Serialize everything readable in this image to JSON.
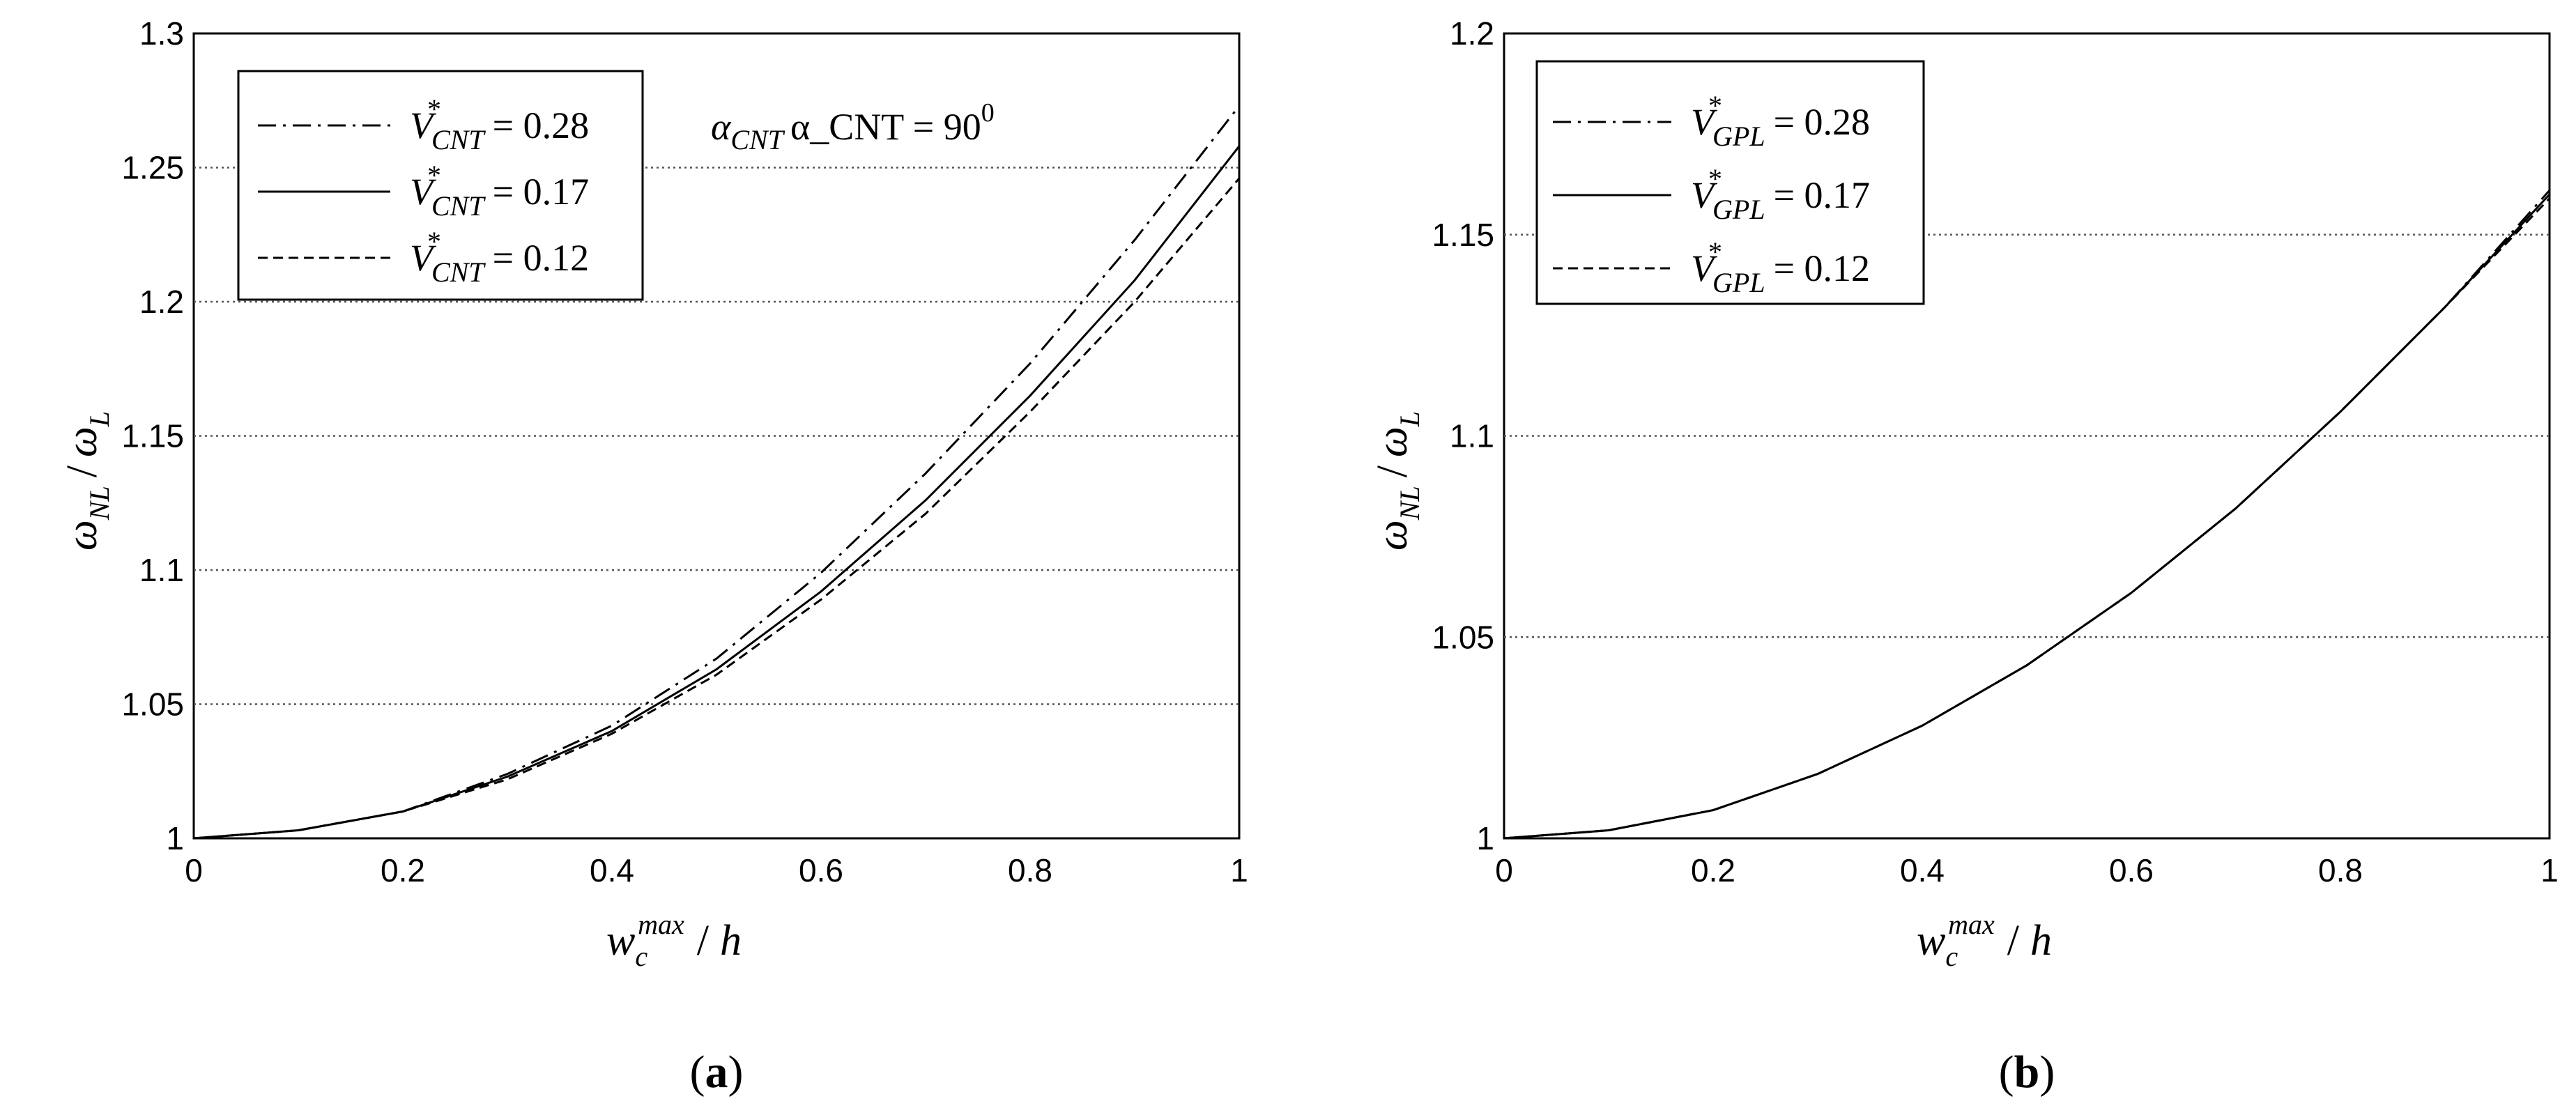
{
  "chart_data": [
    {
      "type": "line",
      "panel_label": "a",
      "xlabel": "w_c^max / h",
      "ylabel": "ω_NL / ω_L",
      "xlim": [
        0,
        1
      ],
      "ylim": [
        1,
        1.3
      ],
      "x_ticks": [
        "0",
        "0.2",
        "0.4",
        "0.6",
        "0.8",
        "1"
      ],
      "y_ticks": [
        "1",
        "1.05",
        "1.1",
        "1.15",
        "1.2",
        "1.25",
        "1.3"
      ],
      "grid": "horizontal-dotted",
      "legend_placement": "top-left",
      "annotation": {
        "label": "α_CNT = 90",
        "superscript": "0"
      },
      "x": [
        0,
        0.1,
        0.2,
        0.3,
        0.4,
        0.5,
        0.6,
        0.7,
        0.8,
        0.9,
        1.0
      ],
      "series": [
        {
          "name": "V*_CNT = 0.28",
          "legend_prefix": "V",
          "legend_subscript": "CNT",
          "legend_value": "= 0.28",
          "style": "dashdot",
          "values": [
            1.0,
            1.003,
            1.01,
            1.024,
            1.042,
            1.067,
            1.099,
            1.136,
            1.177,
            1.223,
            1.273
          ]
        },
        {
          "name": "V*_CNT = 0.17",
          "legend_prefix": "V",
          "legend_subscript": "CNT",
          "legend_value": "= 0.17",
          "style": "solid",
          "values": [
            1.0,
            1.003,
            1.01,
            1.023,
            1.04,
            1.063,
            1.092,
            1.126,
            1.165,
            1.208,
            1.258
          ]
        },
        {
          "name": "V*_CNT = 0.12",
          "legend_prefix": "V",
          "legend_subscript": "CNT",
          "legend_value": "= 0.12",
          "style": "dashed",
          "values": [
            1.0,
            1.003,
            1.01,
            1.022,
            1.039,
            1.061,
            1.089,
            1.121,
            1.159,
            1.2,
            1.246
          ]
        }
      ]
    },
    {
      "type": "line",
      "panel_label": "b",
      "xlabel": "w_c^max / h",
      "ylabel": "ω_NL / ω_L",
      "xlim": [
        0,
        1
      ],
      "ylim": [
        1,
        1.2
      ],
      "x_ticks": [
        "0",
        "0.2",
        "0.4",
        "0.6",
        "0.8",
        "1"
      ],
      "y_ticks": [
        "1",
        "1.05",
        "1.1",
        "1.15",
        "1.2"
      ],
      "grid": "horizontal-dotted",
      "legend_placement": "top-left",
      "x": [
        0,
        0.1,
        0.2,
        0.3,
        0.4,
        0.5,
        0.6,
        0.7,
        0.8,
        0.9,
        1.0
      ],
      "series": [
        {
          "name": "V*_GPL = 0.28",
          "legend_prefix": "V",
          "legend_subscript": "GPL",
          "legend_value": "= 0.28",
          "style": "dashdot",
          "values": [
            1.0,
            1.002,
            1.007,
            1.016,
            1.028,
            1.043,
            1.061,
            1.082,
            1.106,
            1.132,
            1.161
          ]
        },
        {
          "name": "V*_GPL = 0.17",
          "legend_prefix": "V",
          "legend_subscript": "GPL",
          "legend_value": "= 0.17",
          "style": "solid",
          "values": [
            1.0,
            1.002,
            1.007,
            1.016,
            1.028,
            1.043,
            1.061,
            1.082,
            1.106,
            1.132,
            1.16
          ]
        },
        {
          "name": "V*_GPL = 0.12",
          "legend_prefix": "V",
          "legend_subscript": "GPL",
          "legend_value": "= 0.12",
          "style": "dashed",
          "values": [
            1.0,
            1.002,
            1.007,
            1.016,
            1.028,
            1.043,
            1.061,
            1.082,
            1.106,
            1.132,
            1.159
          ]
        }
      ]
    }
  ],
  "labels": {
    "omega": "ω",
    "nl_sub": "NL",
    "l_sub": "L",
    "slash": "/",
    "w": "w",
    "c_sub": "c",
    "max_sup": "max",
    "h": "h",
    "star": "*",
    "alpha": "α"
  }
}
